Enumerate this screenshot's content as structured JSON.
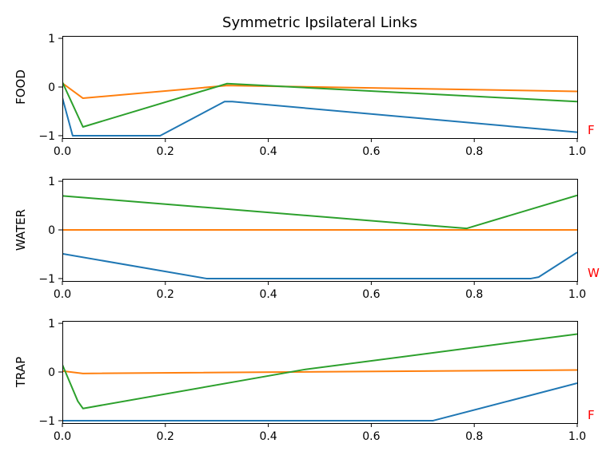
{
  "figure": {
    "title": "Symmetric Ipsilateral Links"
  },
  "colors": {
    "series1": "#1f77b4",
    "series2": "#ff7f0e",
    "series3": "#2ca02c",
    "annotation": "#ff0000"
  },
  "chart_data": [
    {
      "type": "line",
      "ylabel": "FOOD",
      "annotation": "F",
      "xlim": [
        0,
        1
      ],
      "ylim": [
        -1.05,
        1.05
      ],
      "xticks": [
        "0.0",
        "0.2",
        "0.4",
        "0.6",
        "0.8",
        "1.0"
      ],
      "xtick_values": [
        0,
        0.2,
        0.4,
        0.6,
        0.8,
        1.0
      ],
      "yticks": [
        "-1",
        "0",
        "1"
      ],
      "ytick_values": [
        -1,
        0,
        1
      ],
      "series": [
        {
          "color": "#1f77b4",
          "points": [
            [
              0,
              -0.22
            ],
            [
              0.02,
              -1.0
            ],
            [
              0.19,
              -1.0
            ],
            [
              0.315,
              -0.3
            ],
            [
              0.33,
              -0.3
            ],
            [
              1.0,
              -0.93
            ]
          ]
        },
        {
          "color": "#ff7f0e",
          "points": [
            [
              0,
              0.08
            ],
            [
              0.04,
              -0.23
            ],
            [
              0.32,
              0.03
            ],
            [
              1.0,
              -0.09
            ]
          ]
        },
        {
          "color": "#2ca02c",
          "points": [
            [
              0,
              0.1
            ],
            [
              0.04,
              -0.82
            ],
            [
              0.32,
              0.07
            ],
            [
              1.0,
              -0.3
            ]
          ]
        }
      ]
    },
    {
      "type": "line",
      "ylabel": "WATER",
      "annotation": "W",
      "xlim": [
        0,
        1
      ],
      "ylim": [
        -1.05,
        1.05
      ],
      "xticks": [
        "0.0",
        "0.2",
        "0.4",
        "0.6",
        "0.8",
        "1.0"
      ],
      "xtick_values": [
        0,
        0.2,
        0.4,
        0.6,
        0.8,
        1.0
      ],
      "yticks": [
        "-1",
        "0",
        "1"
      ],
      "ytick_values": [
        -1,
        0,
        1
      ],
      "series": [
        {
          "color": "#1f77b4",
          "points": [
            [
              0,
              -0.49
            ],
            [
              0.28,
              -1.0
            ],
            [
              0.91,
              -1.0
            ],
            [
              0.925,
              -0.97
            ],
            [
              1.0,
              -0.46
            ]
          ]
        },
        {
          "color": "#ff7f0e",
          "points": [
            [
              0,
              0.0
            ],
            [
              1.0,
              0.0
            ]
          ]
        },
        {
          "color": "#2ca02c",
          "points": [
            [
              0,
              0.7
            ],
            [
              0.785,
              0.03
            ],
            [
              1.0,
              0.71
            ]
          ]
        }
      ]
    },
    {
      "type": "line",
      "ylabel": "TRAP",
      "annotation": "F",
      "xlim": [
        0,
        1
      ],
      "ylim": [
        -1.05,
        1.05
      ],
      "xticks": [
        "0.0",
        "0.2",
        "0.4",
        "0.6",
        "0.8",
        "1.0"
      ],
      "xtick_values": [
        0,
        0.2,
        0.4,
        0.6,
        0.8,
        1.0
      ],
      "yticks": [
        "-1",
        "0",
        "1"
      ],
      "ytick_values": [
        -1,
        0,
        1
      ],
      "series": [
        {
          "color": "#1f77b4",
          "points": [
            [
              0,
              -1.0
            ],
            [
              0.72,
              -1.0
            ],
            [
              1.0,
              -0.23
            ]
          ]
        },
        {
          "color": "#ff7f0e",
          "points": [
            [
              0,
              0.02
            ],
            [
              0.04,
              -0.03
            ],
            [
              1.0,
              0.04
            ]
          ]
        },
        {
          "color": "#2ca02c",
          "points": [
            [
              0,
              0.15
            ],
            [
              0.03,
              -0.6
            ],
            [
              0.04,
              -0.75
            ],
            [
              0.47,
              0.05
            ],
            [
              1.0,
              0.78
            ]
          ]
        }
      ]
    }
  ]
}
